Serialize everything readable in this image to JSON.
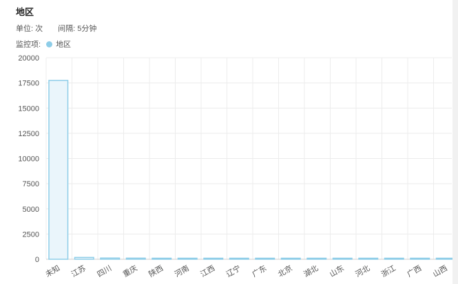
{
  "header": {
    "title": "地区",
    "unit_label": "单位: 次",
    "interval_label": "间隔: 5分钟",
    "monitor_label": "监控项:",
    "legend_name": "地区"
  },
  "colors": {
    "bar_stroke": "#8ecde8",
    "bar_fill": "#eaf5fb",
    "grid": "#ececec"
  },
  "chart_data": {
    "type": "bar",
    "categories": [
      "未知",
      "江苏",
      "四川",
      "重庆",
      "陕西",
      "河南",
      "江西",
      "辽宁",
      "广东",
      "北京",
      "湖北",
      "山东",
      "河北",
      "浙江",
      "广西",
      "山西"
    ],
    "series": [
      {
        "name": "地区",
        "values": [
          17750,
          180,
          120,
          110,
          100,
          90,
          85,
          80,
          80,
          70,
          65,
          60,
          55,
          45,
          35,
          30
        ]
      }
    ],
    "yticks": [
      0,
      2500,
      5000,
      7500,
      10000,
      12500,
      15000,
      17500,
      20000
    ],
    "ylim": [
      0,
      20000
    ],
    "grid": true,
    "legend_position": "top-left"
  }
}
